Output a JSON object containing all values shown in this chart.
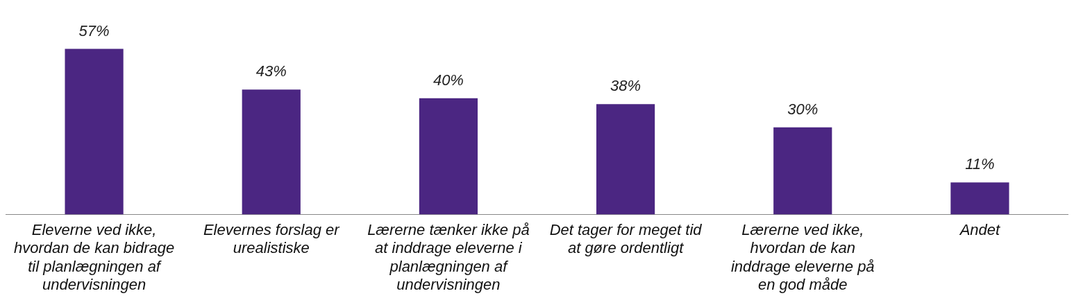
{
  "chart_data": {
    "type": "bar",
    "categories": [
      "Eleverne ved ikke, hvordan de kan bidrage til planlægningen af undervisningen",
      "Elevernes forslag er urealistiske",
      "Lærerne tænker ikke på at inddrage eleverne i planlægningen af undervisningen",
      "Det tager for meget tid at gøre ordentligt",
      "Lærerne ved ikke, hvordan de kan inddrage eleverne på en god måde",
      "Andet"
    ],
    "values": [
      57,
      43,
      40,
      38,
      30,
      11
    ],
    "value_labels": [
      "57%",
      "43%",
      "40%",
      "38%",
      "30%",
      "11%"
    ],
    "color": "#4b2682",
    "tick_labels": "x",
    "grid": false,
    "legend": false
  }
}
